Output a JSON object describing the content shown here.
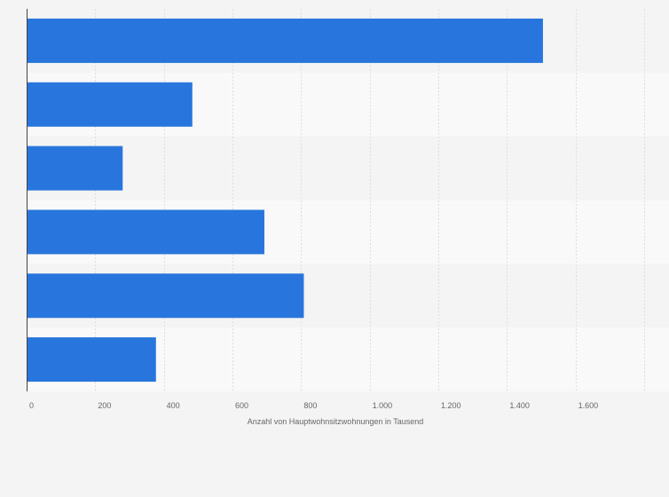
{
  "chart_data": {
    "type": "bar",
    "orientation": "horizontal",
    "categories": [
      "",
      "",
      "",
      "",
      "",
      ""
    ],
    "values": [
      1505,
      483,
      280,
      693,
      808,
      377
    ],
    "xlabel": "Anzahl von Hauptwohnsitzwohnungen in Tausend",
    "ylabel": "",
    "xlim": [
      0,
      1800
    ],
    "xticks": [
      0,
      200,
      400,
      600,
      800,
      1000,
      1200,
      1400,
      1600
    ],
    "xtick_labels": [
      "0",
      "200",
      "400",
      "600",
      "800",
      "1.000",
      "1.200",
      "1.400",
      "1.600"
    ],
    "grid": true,
    "bar_color": "#2876dd",
    "row_band_colors": [
      "#f4f4f4",
      "#f9f9f9"
    ]
  }
}
